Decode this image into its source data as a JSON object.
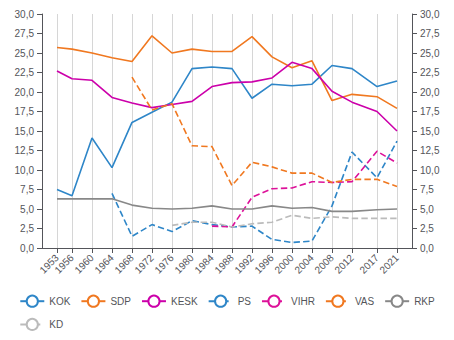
{
  "chart_data": {
    "type": "line",
    "x": [
      1953,
      1956,
      1960,
      1964,
      1968,
      1972,
      1976,
      1980,
      1984,
      1988,
      1992,
      1996,
      2000,
      2004,
      2008,
      2012,
      2017,
      2021
    ],
    "series": [
      {
        "name": "KOK",
        "color": "#2E86C8",
        "line_style": "solid",
        "values": [
          7.5,
          6.7,
          14.1,
          10.3,
          16.1,
          17.4,
          18.7,
          23.0,
          23.2,
          23.0,
          19.2,
          21.0,
          20.8,
          21.0,
          23.4,
          23.0,
          20.7,
          21.4
        ]
      },
      {
        "name": "SDP",
        "color": "#F07820",
        "line_style": "solid",
        "values": [
          25.7,
          25.5,
          25.0,
          24.4,
          23.9,
          27.2,
          25.0,
          25.5,
          25.2,
          25.2,
          27.1,
          24.5,
          23.1,
          24.0,
          18.9,
          19.7,
          19.4,
          17.9
        ]
      },
      {
        "name": "KESK",
        "color": "#CC00AA",
        "line_style": "solid",
        "values": [
          22.7,
          21.7,
          21.5,
          19.3,
          18.6,
          18.0,
          18.4,
          18.8,
          20.7,
          21.2,
          21.3,
          21.8,
          23.8,
          23.0,
          20.1,
          18.7,
          17.5,
          15.0
        ]
      },
      {
        "name": "PS",
        "color": "#2E86C8",
        "line_style": "dashed",
        "values": [
          null,
          null,
          null,
          7.0,
          1.5,
          3.0,
          2.1,
          3.5,
          3.0,
          2.7,
          2.8,
          1.1,
          0.7,
          0.9,
          5.4,
          12.3,
          9.0,
          13.7
        ]
      },
      {
        "name": "VIHR",
        "color": "#DD1199",
        "line_style": "dashed",
        "values": [
          null,
          null,
          null,
          null,
          null,
          null,
          null,
          null,
          2.8,
          2.7,
          6.5,
          7.6,
          7.7,
          8.5,
          8.4,
          8.5,
          12.4,
          10.9
        ]
      },
      {
        "name": "VAS",
        "color": "#F07820",
        "line_style": "dashed",
        "values": [
          null,
          null,
          null,
          null,
          21.9,
          17.7,
          18.5,
          13.1,
          13.0,
          8.0,
          11.0,
          10.4,
          9.6,
          9.6,
          8.4,
          8.8,
          8.8,
          7.9
        ]
      },
      {
        "name": "RKP",
        "color": "#888888",
        "line_style": "solid",
        "values": [
          6.3,
          6.3,
          6.3,
          6.3,
          5.5,
          5.1,
          5.0,
          5.1,
          5.4,
          5.0,
          5.0,
          5.4,
          5.1,
          5.2,
          4.7,
          4.7,
          4.9,
          5.0
        ]
      },
      {
        "name": "KD",
        "color": "#BBBBBB",
        "line_style": "dashed",
        "values": [
          null,
          null,
          null,
          null,
          null,
          null,
          2.9,
          3.3,
          3.3,
          2.7,
          3.1,
          3.3,
          4.2,
          3.8,
          4.0,
          3.8,
          3.8,
          3.8
        ]
      }
    ],
    "xlim": [
      1950,
      2024
    ],
    "xticks": [
      1953,
      1956,
      1960,
      1964,
      1968,
      1972,
      1976,
      1980,
      1984,
      1988,
      1992,
      1996,
      2000,
      2004,
      2008,
      2012,
      2017,
      2021
    ],
    "ylim": [
      0,
      30
    ],
    "yticks": [
      {
        "value": 0.0,
        "label": "0,0"
      },
      {
        "value": 2.5,
        "label": "2,5"
      },
      {
        "value": 5.0,
        "label": "5,0"
      },
      {
        "value": 7.5,
        "label": "7,5"
      },
      {
        "value": 10.0,
        "label": "10,0"
      },
      {
        "value": 12.5,
        "label": "12,5"
      },
      {
        "value": 15.0,
        "label": "15,0"
      },
      {
        "value": 17.5,
        "label": "17,5"
      },
      {
        "value": 20.0,
        "label": "20,0"
      },
      {
        "value": 22.5,
        "label": "22,5"
      },
      {
        "value": 25.0,
        "label": "25,0"
      },
      {
        "value": 27.5,
        "label": "27,5"
      },
      {
        "value": 30.0,
        "label": "30,0"
      }
    ],
    "y2lim": [
      0,
      30
    ],
    "y2ticks": [
      {
        "value": 0.0,
        "label": "0,0"
      },
      {
        "value": 2.5,
        "label": "2,5"
      },
      {
        "value": 5.0,
        "label": "5,0"
      },
      {
        "value": 7.5,
        "label": "7,5"
      },
      {
        "value": 10.0,
        "label": "10,0"
      },
      {
        "value": 12.5,
        "label": "12,5"
      },
      {
        "value": 15.0,
        "label": "15,0"
      },
      {
        "value": 17.5,
        "label": "17,5"
      },
      {
        "value": 20.0,
        "label": "20,0"
      },
      {
        "value": 22.5,
        "label": "22,5"
      },
      {
        "value": 25.0,
        "label": "25,0"
      },
      {
        "value": 27.5,
        "label": "27,5"
      },
      {
        "value": 30.0,
        "label": "30,0"
      }
    ],
    "grid": "x",
    "legend": "bottom"
  }
}
